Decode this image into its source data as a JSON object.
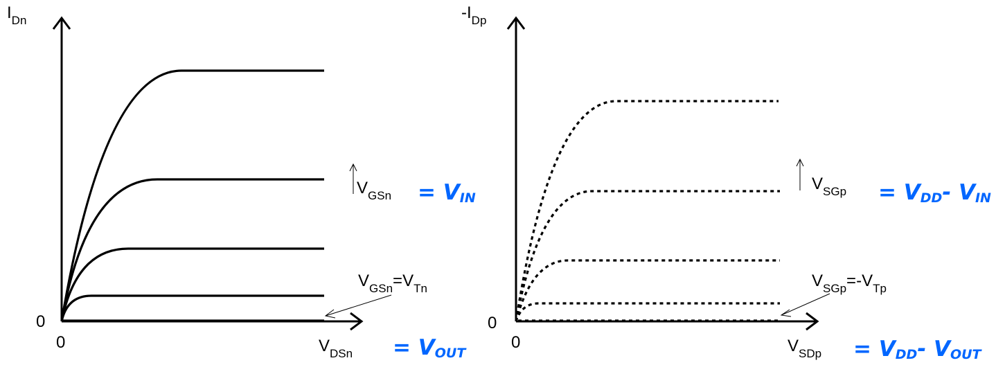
{
  "nmos": {
    "y_label_main": "I",
    "y_label_sub": "Dn",
    "origin_y": "0",
    "origin_x": "0",
    "x_label_main": "V",
    "x_label_sub": "DSn",
    "x_label_hand": "= V",
    "x_label_hand_sub": "OUT",
    "gate_label_main": "V",
    "gate_label_sub": "GSn",
    "gate_label_hand": "= V",
    "gate_label_hand_sub": "IN",
    "threshold_label": {
      "v1": "V",
      "sub1": "GSn",
      "eq": "=",
      "v2": "V",
      "sub2": "Tn"
    },
    "curve_count": 5
  },
  "pmos": {
    "y_label_main": "-I",
    "y_label_sub": "Dp",
    "origin_y": "0",
    "origin_x": "0",
    "x_label_main": "V",
    "x_label_sub": "SDp",
    "x_label_hand": "= V",
    "x_label_hand_sub": "DD",
    "x_label_hand_2": "- V",
    "x_label_hand_sub_2": "OUT",
    "gate_label_main": "V",
    "gate_label_sub": "SGp",
    "gate_label_hand": "= V",
    "gate_label_hand_sub": "DD",
    "gate_label_hand_2": "- V",
    "gate_label_hand_sub_2": "IN",
    "threshold_label": {
      "v1": "V",
      "sub1": "SGp",
      "eq": "=-",
      "v2": "V",
      "sub2": "Tp"
    },
    "curve_count": 5,
    "line_style": "dotted"
  },
  "colors": {
    "ink": "#000000",
    "handwriting": "#0066ff"
  }
}
